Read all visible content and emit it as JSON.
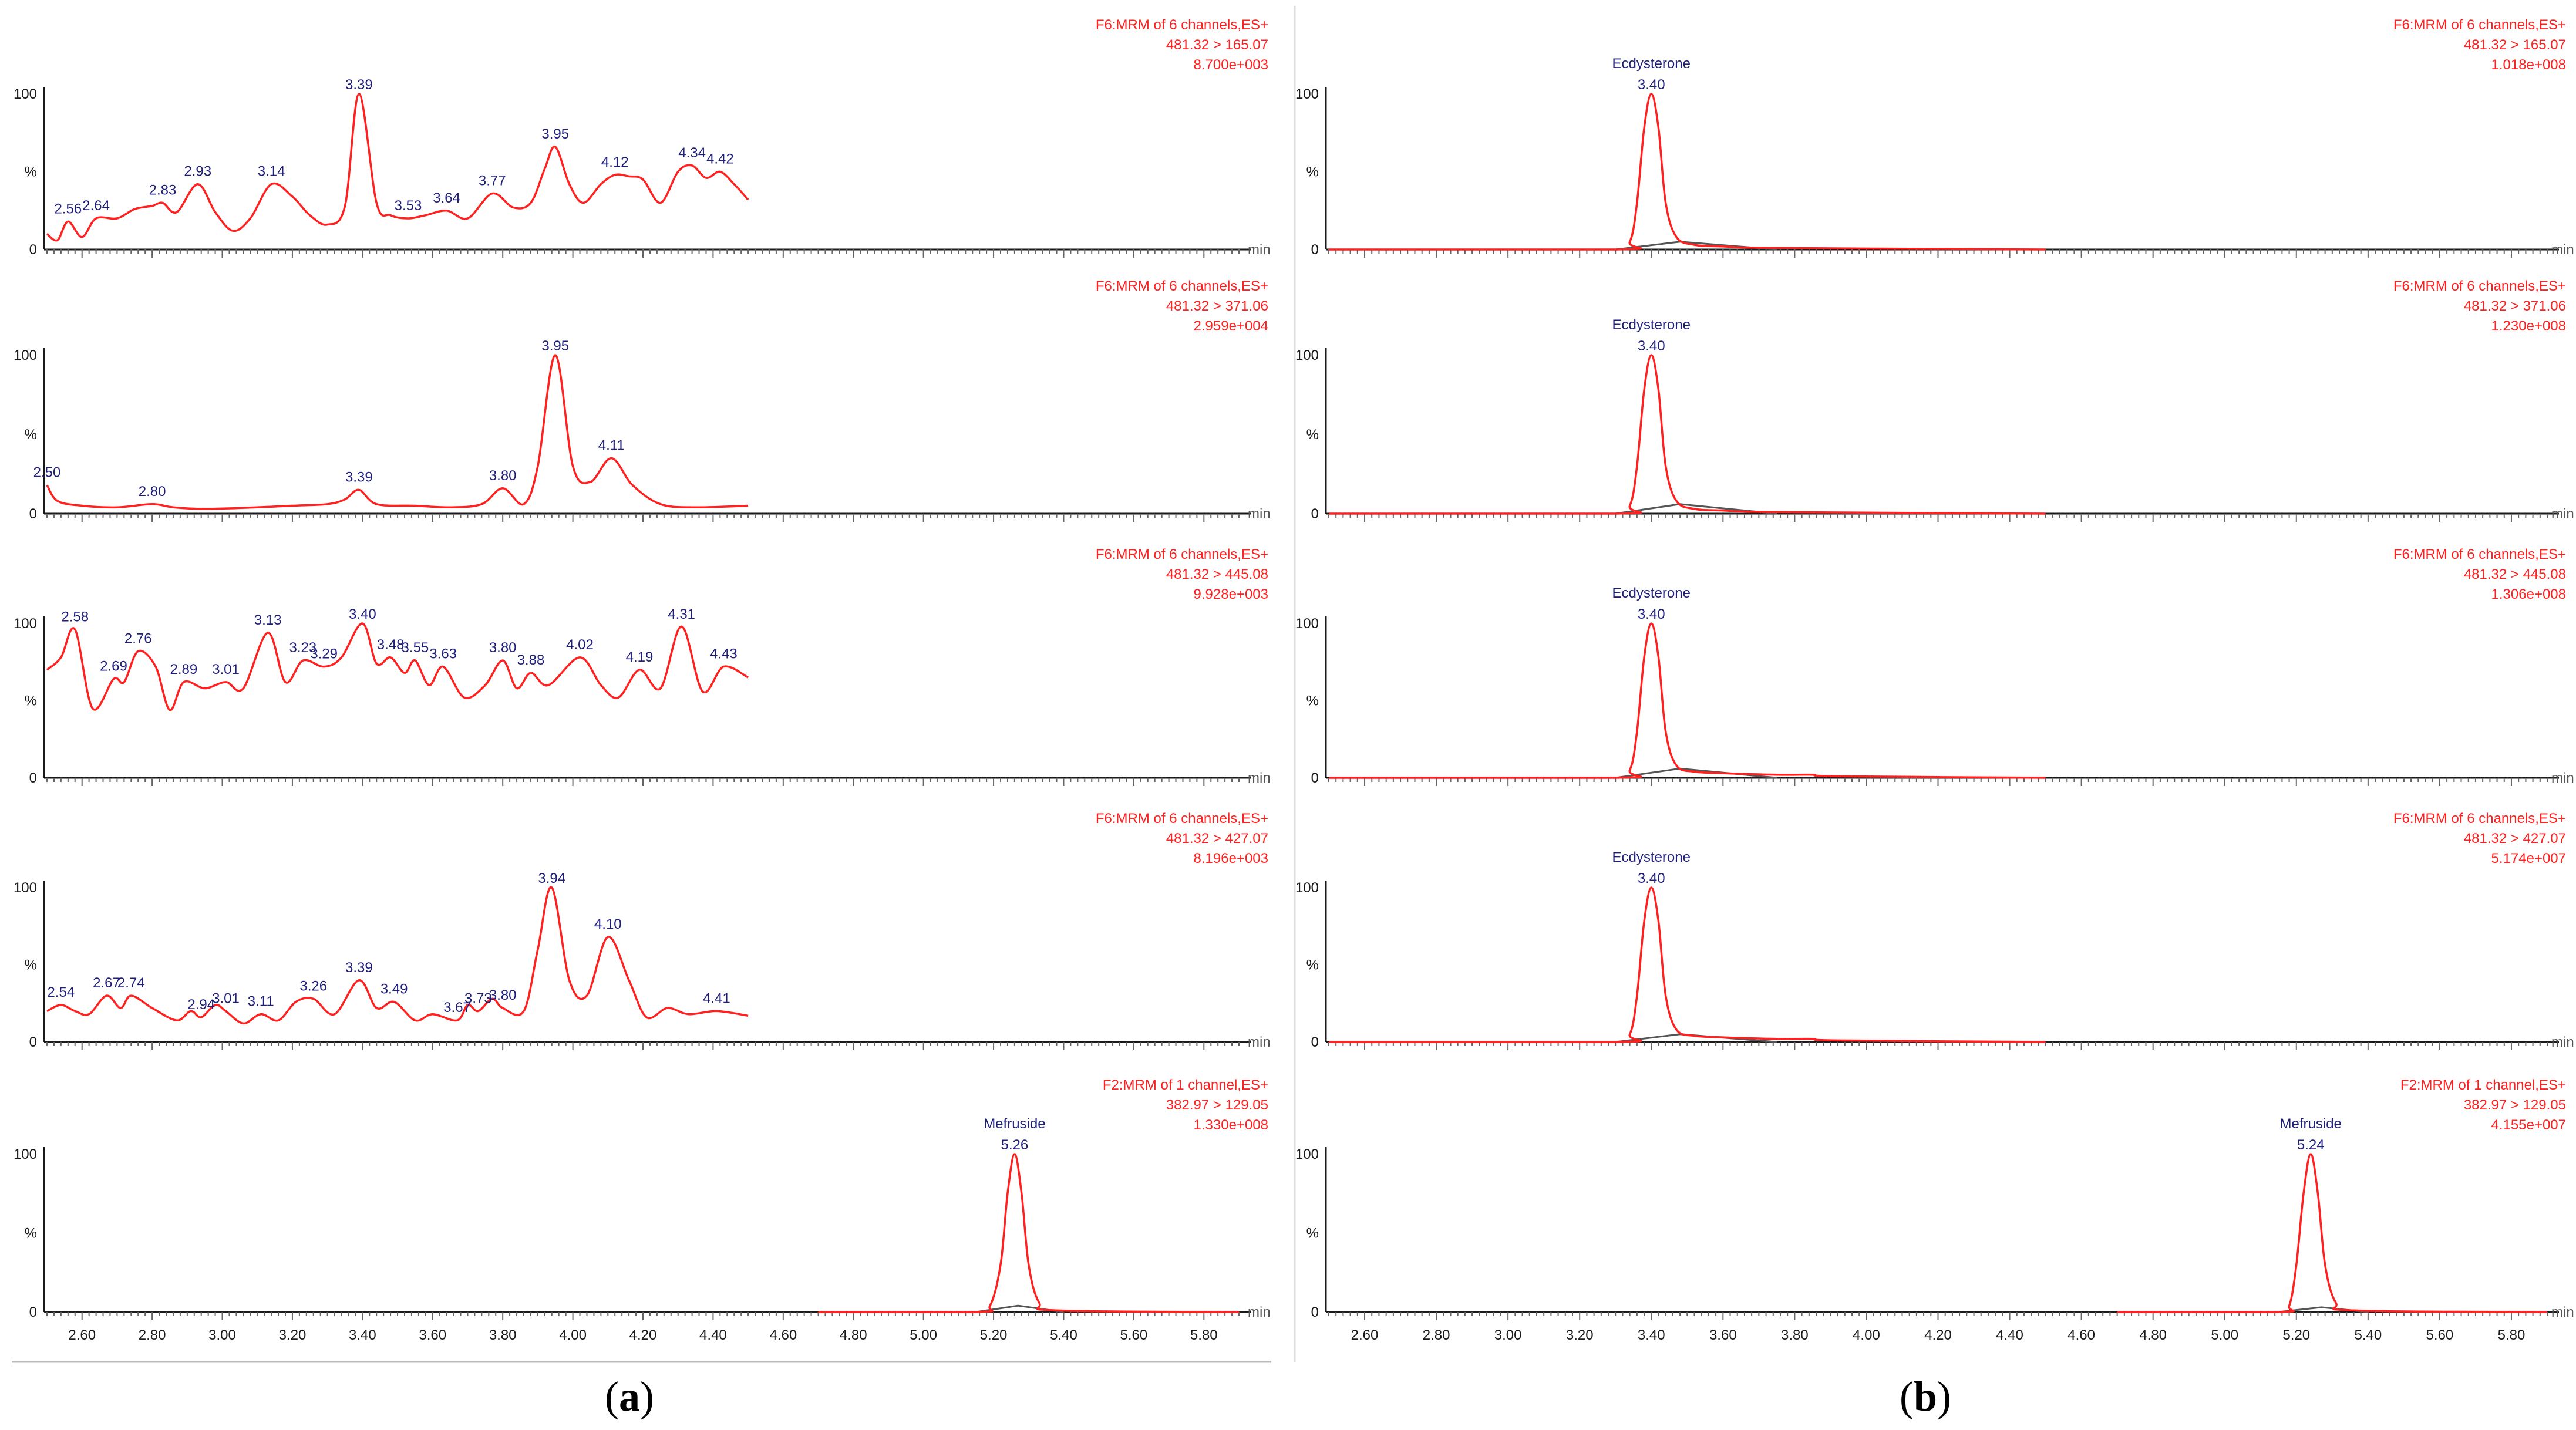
{
  "colors": {
    "trace": "#ff2020",
    "peak_label": "#1f1f7a",
    "axis": "#1a1a1a",
    "header": "#ff2020",
    "secondary": "#555555"
  },
  "panel_labels": [
    {
      "open": "(",
      "letter": "a",
      "close": ")"
    },
    {
      "open": "(",
      "letter": "b",
      "close": ")"
    }
  ],
  "chart_data": [
    {
      "type": "line",
      "panel": "a",
      "row": 1,
      "header": [
        "F6:MRM of 6 channels,ES+",
        "481.32 > 165.07",
        "8.700e+003"
      ],
      "ylabels": [
        "100",
        "%",
        "0"
      ],
      "xunit": "min",
      "xlim": [
        2.5,
        5.9
      ],
      "ylim": [
        0,
        100
      ],
      "show_xticks": false,
      "x": [
        2.5,
        2.53,
        2.56,
        2.6,
        2.64,
        2.7,
        2.75,
        2.8,
        2.83,
        2.87,
        2.93,
        2.98,
        3.03,
        3.08,
        3.14,
        3.2,
        3.25,
        3.3,
        3.35,
        3.39,
        3.44,
        3.48,
        3.53,
        3.58,
        3.64,
        3.7,
        3.77,
        3.83,
        3.88,
        3.92,
        3.95,
        3.99,
        4.03,
        4.08,
        4.12,
        4.16,
        4.2,
        4.25,
        4.3,
        4.34,
        4.38,
        4.42,
        4.46,
        4.5
      ],
      "y": [
        10,
        6,
        18,
        8,
        20,
        20,
        26,
        28,
        30,
        24,
        42,
        24,
        12,
        20,
        42,
        34,
        22,
        16,
        28,
        100,
        30,
        22,
        20,
        22,
        25,
        20,
        36,
        27,
        30,
        52,
        66,
        42,
        30,
        42,
        48,
        47,
        45,
        30,
        50,
        54,
        46,
        50,
        42,
        32
      ],
      "peaks": [
        {
          "x": 2.56,
          "label": "2.56"
        },
        {
          "x": 2.64,
          "label": "2.64"
        },
        {
          "x": 2.83,
          "label": "2.83"
        },
        {
          "x": 2.93,
          "label": "2.93"
        },
        {
          "x": 3.14,
          "label": "3.14"
        },
        {
          "x": 3.39,
          "label": "3.39"
        },
        {
          "x": 3.53,
          "label": "3.53"
        },
        {
          "x": 3.64,
          "label": "3.64"
        },
        {
          "x": 3.77,
          "label": "3.77"
        },
        {
          "x": 3.95,
          "label": "3.95"
        },
        {
          "x": 4.12,
          "label": "4.12"
        },
        {
          "x": 4.34,
          "label": "4.34"
        },
        {
          "x": 4.42,
          "label": "4.42"
        }
      ]
    },
    {
      "type": "line",
      "panel": "a",
      "row": 2,
      "header": [
        "F6:MRM of 6 channels,ES+",
        "481.32 > 371.06",
        "2.959e+004"
      ],
      "ylabels": [
        "100",
        "%",
        "0"
      ],
      "xunit": "min",
      "xlim": [
        2.5,
        5.9
      ],
      "ylim": [
        0,
        100
      ],
      "show_xticks": false,
      "x": [
        2.5,
        2.53,
        2.6,
        2.7,
        2.8,
        2.86,
        2.95,
        3.1,
        3.2,
        3.3,
        3.35,
        3.39,
        3.44,
        3.55,
        3.65,
        3.74,
        3.8,
        3.86,
        3.9,
        3.95,
        4.0,
        4.05,
        4.11,
        4.17,
        4.25,
        4.35,
        4.5
      ],
      "y": [
        18,
        8,
        5,
        4,
        6,
        4,
        3,
        4,
        5,
        6,
        9,
        15,
        6,
        5,
        4,
        6,
        16,
        6,
        30,
        100,
        30,
        20,
        35,
        18,
        6,
        4,
        5
      ],
      "peaks": [
        {
          "x": 2.5,
          "label": "2.50"
        },
        {
          "x": 2.8,
          "label": "2.80"
        },
        {
          "x": 3.39,
          "label": "3.39"
        },
        {
          "x": 3.8,
          "label": "3.80"
        },
        {
          "x": 3.95,
          "label": "3.95"
        },
        {
          "x": 4.11,
          "label": "4.11"
        }
      ]
    },
    {
      "type": "line",
      "panel": "a",
      "row": 3,
      "header": [
        "F6:MRM of 6 channels,ES+",
        "481.32 > 445.08",
        "9.928e+003"
      ],
      "ylabels": [
        "100",
        "%",
        "0"
      ],
      "xunit": "min",
      "xlim": [
        2.5,
        5.9
      ],
      "ylim": [
        0,
        100
      ],
      "show_xticks": false,
      "x": [
        2.5,
        2.54,
        2.58,
        2.63,
        2.69,
        2.72,
        2.76,
        2.81,
        2.85,
        2.89,
        2.95,
        3.01,
        3.06,
        3.13,
        3.18,
        3.23,
        3.29,
        3.34,
        3.4,
        3.44,
        3.48,
        3.52,
        3.55,
        3.59,
        3.63,
        3.69,
        3.75,
        3.8,
        3.84,
        3.88,
        3.93,
        4.02,
        4.08,
        4.13,
        4.19,
        4.25,
        4.31,
        4.37,
        4.43,
        4.5
      ],
      "y": [
        70,
        78,
        96,
        45,
        64,
        62,
        82,
        72,
        44,
        62,
        58,
        62,
        58,
        94,
        62,
        76,
        72,
        78,
        100,
        74,
        78,
        68,
        76,
        60,
        72,
        52,
        60,
        76,
        58,
        68,
        60,
        78,
        60,
        52,
        70,
        58,
        98,
        56,
        72,
        65
      ],
      "peaks": [
        {
          "x": 2.58,
          "label": "2.58"
        },
        {
          "x": 2.69,
          "label": "2.69"
        },
        {
          "x": 2.76,
          "label": "2.76"
        },
        {
          "x": 2.89,
          "label": "2.89"
        },
        {
          "x": 3.01,
          "label": "3.01"
        },
        {
          "x": 3.13,
          "label": "3.13"
        },
        {
          "x": 3.23,
          "label": "3.23"
        },
        {
          "x": 3.29,
          "label": "3.29"
        },
        {
          "x": 3.4,
          "label": "3.40"
        },
        {
          "x": 3.48,
          "label": "3.48"
        },
        {
          "x": 3.55,
          "label": "3.55"
        },
        {
          "x": 3.63,
          "label": "3.63"
        },
        {
          "x": 3.8,
          "label": "3.80"
        },
        {
          "x": 3.88,
          "label": "3.88"
        },
        {
          "x": 4.02,
          "label": "4.02"
        },
        {
          "x": 4.19,
          "label": "4.19"
        },
        {
          "x": 4.31,
          "label": "4.31"
        },
        {
          "x": 4.43,
          "label": "4.43"
        }
      ]
    },
    {
      "type": "line",
      "panel": "a",
      "row": 4,
      "header": [
        "F6:MRM of 6 channels,ES+",
        "481.32 > 427.07",
        "8.196e+003"
      ],
      "ylabels": [
        "100",
        "%",
        "0"
      ],
      "xunit": "min",
      "xlim": [
        2.5,
        5.9
      ],
      "ylim": [
        0,
        100
      ],
      "show_xticks": false,
      "x": [
        2.5,
        2.54,
        2.58,
        2.62,
        2.67,
        2.71,
        2.74,
        2.8,
        2.87,
        2.91,
        2.94,
        2.98,
        3.01,
        3.06,
        3.11,
        3.16,
        3.21,
        3.26,
        3.32,
        3.39,
        3.44,
        3.49,
        3.55,
        3.6,
        3.67,
        3.7,
        3.73,
        3.77,
        3.8,
        3.86,
        3.9,
        3.94,
        3.99,
        4.04,
        4.1,
        4.16,
        4.21,
        4.27,
        4.33,
        4.41,
        4.5
      ],
      "y": [
        20,
        24,
        20,
        18,
        30,
        22,
        30,
        22,
        14,
        20,
        16,
        24,
        20,
        12,
        18,
        14,
        26,
        28,
        18,
        40,
        22,
        26,
        14,
        18,
        14,
        24,
        20,
        28,
        22,
        20,
        60,
        100,
        40,
        30,
        68,
        40,
        16,
        22,
        18,
        20,
        17
      ],
      "peaks": [
        {
          "x": 2.54,
          "label": "2.54"
        },
        {
          "x": 2.67,
          "label": "2.67"
        },
        {
          "x": 2.74,
          "label": "2.74"
        },
        {
          "x": 2.94,
          "label": "2.94"
        },
        {
          "x": 3.01,
          "label": "3.01"
        },
        {
          "x": 3.11,
          "label": "3.11"
        },
        {
          "x": 3.26,
          "label": "3.26"
        },
        {
          "x": 3.39,
          "label": "3.39"
        },
        {
          "x": 3.49,
          "label": "3.49"
        },
        {
          "x": 3.67,
          "label": "3.67"
        },
        {
          "x": 3.73,
          "label": "3.73"
        },
        {
          "x": 3.8,
          "label": "3.80"
        },
        {
          "x": 3.94,
          "label": "3.94"
        },
        {
          "x": 4.1,
          "label": "4.10"
        },
        {
          "x": 4.41,
          "label": "4.41"
        }
      ]
    },
    {
      "type": "line",
      "panel": "a",
      "row": 5,
      "header": [
        "F2:MRM of 1 channel,ES+",
        "382.97 > 129.05",
        "1.330e+008"
      ],
      "ylabels": [
        "100",
        "%",
        "0"
      ],
      "xunit": "min",
      "xlim": [
        2.5,
        5.9
      ],
      "ylim": [
        0,
        100
      ],
      "show_xticks": true,
      "xticks": [
        "2.60",
        "2.80",
        "3.00",
        "3.20",
        "3.40",
        "3.60",
        "3.80",
        "4.00",
        "4.20",
        "4.40",
        "4.60",
        "4.80",
        "5.00",
        "5.20",
        "5.40",
        "5.60",
        "5.80"
      ],
      "x": [
        4.7,
        5.15,
        5.19,
        5.22,
        5.24,
        5.26,
        5.28,
        5.3,
        5.33,
        5.38,
        5.9
      ],
      "y": [
        0,
        0,
        4,
        30,
        75,
        100,
        75,
        30,
        6,
        1,
        0
      ],
      "baseline": {
        "x": [
          5.15,
          5.27,
          5.4
        ],
        "y": [
          0,
          4,
          0
        ]
      },
      "peaks": [
        {
          "x": 5.26,
          "label": "5.26",
          "name": "Mefruside"
        }
      ]
    },
    {
      "type": "line",
      "panel": "b",
      "row": 1,
      "header": [
        "F6:MRM of 6 channels,ES+",
        "481.32 > 165.07",
        "1.018e+008"
      ],
      "ylabels": [
        "100",
        "%",
        "0"
      ],
      "xunit": "min",
      "xlim": [
        2.5,
        5.9
      ],
      "ylim": [
        0,
        100
      ],
      "show_xticks": false,
      "x": [
        2.5,
        3.3,
        3.34,
        3.36,
        3.38,
        3.4,
        3.42,
        3.44,
        3.47,
        3.52,
        3.6,
        3.75,
        4.5
      ],
      "y": [
        0,
        0,
        5,
        30,
        78,
        100,
        78,
        30,
        8,
        3,
        2,
        1,
        0
      ],
      "baseline": {
        "x": [
          3.3,
          3.48,
          3.75
        ],
        "y": [
          0,
          5,
          0
        ]
      },
      "peaks": [
        {
          "x": 3.4,
          "label": "3.40",
          "name": "Ecdysterone"
        }
      ]
    },
    {
      "type": "line",
      "panel": "b",
      "row": 2,
      "header": [
        "F6:MRM of 6 channels,ES+",
        "481.32 > 371.06",
        "1.230e+008"
      ],
      "ylabels": [
        "100",
        "%",
        "0"
      ],
      "xunit": "min",
      "xlim": [
        2.5,
        5.9
      ],
      "ylim": [
        0,
        100
      ],
      "show_xticks": false,
      "x": [
        2.5,
        3.3,
        3.34,
        3.36,
        3.38,
        3.4,
        3.42,
        3.44,
        3.47,
        3.52,
        3.6,
        3.75,
        4.5
      ],
      "y": [
        0,
        0,
        5,
        30,
        78,
        100,
        78,
        30,
        8,
        3,
        2,
        1,
        0
      ],
      "baseline": {
        "x": [
          3.3,
          3.48,
          3.75
        ],
        "y": [
          0,
          6,
          0
        ]
      },
      "peaks": [
        {
          "x": 3.4,
          "label": "3.40",
          "name": "Ecdysterone"
        }
      ]
    },
    {
      "type": "line",
      "panel": "b",
      "row": 3,
      "header": [
        "F6:MRM of 6 channels,ES+",
        "481.32 > 445.08",
        "1.306e+008"
      ],
      "ylabels": [
        "100",
        "%",
        "0"
      ],
      "xunit": "min",
      "xlim": [
        2.5,
        5.9
      ],
      "ylim": [
        0,
        100
      ],
      "show_xticks": false,
      "x": [
        2.5,
        3.3,
        3.34,
        3.36,
        3.38,
        3.4,
        3.42,
        3.44,
        3.47,
        3.52,
        3.6,
        3.75,
        3.85,
        3.92,
        4.5
      ],
      "y": [
        0,
        0,
        5,
        30,
        78,
        100,
        78,
        30,
        8,
        4,
        3,
        2,
        2,
        1,
        0
      ],
      "baseline": {
        "x": [
          3.3,
          3.48,
          3.75
        ],
        "y": [
          0,
          6,
          0
        ]
      },
      "peaks": [
        {
          "x": 3.4,
          "label": "3.40",
          "name": "Ecdysterone"
        }
      ]
    },
    {
      "type": "line",
      "panel": "b",
      "row": 4,
      "header": [
        "F6:MRM of 6 channels,ES+",
        "481.32 > 427.07",
        "5.174e+007"
      ],
      "ylabels": [
        "100",
        "%",
        "0"
      ],
      "xunit": "min",
      "xlim": [
        2.5,
        5.9
      ],
      "ylim": [
        0,
        100
      ],
      "show_xticks": false,
      "x": [
        2.5,
        3.3,
        3.34,
        3.36,
        3.38,
        3.4,
        3.42,
        3.44,
        3.47,
        3.52,
        3.6,
        3.75,
        3.85,
        3.92,
        4.5
      ],
      "y": [
        0,
        0,
        5,
        30,
        78,
        100,
        78,
        30,
        8,
        4,
        3,
        2,
        2,
        1,
        0
      ],
      "baseline": {
        "x": [
          3.3,
          3.48,
          3.75
        ],
        "y": [
          0,
          5,
          0
        ]
      },
      "peaks": [
        {
          "x": 3.4,
          "label": "3.40",
          "name": "Ecdysterone"
        }
      ]
    },
    {
      "type": "line",
      "panel": "b",
      "row": 5,
      "header": [
        "F2:MRM of 1 channel,ES+",
        "382.97 > 129.05",
        "4.155e+007"
      ],
      "ylabels": [
        "100",
        "%",
        "0"
      ],
      "xunit": "min",
      "xlim": [
        2.5,
        5.9
      ],
      "ylim": [
        0,
        100
      ],
      "show_xticks": true,
      "xticks": [
        "2.60",
        "2.80",
        "3.00",
        "3.20",
        "3.40",
        "3.60",
        "3.80",
        "4.00",
        "4.20",
        "4.40",
        "4.60",
        "4.80",
        "5.00",
        "5.20",
        "5.40",
        "5.60",
        "5.80"
      ],
      "x": [
        4.7,
        5.15,
        5.18,
        5.2,
        5.22,
        5.24,
        5.26,
        5.28,
        5.31,
        5.36,
        5.9
      ],
      "y": [
        0,
        0,
        4,
        30,
        75,
        100,
        75,
        30,
        6,
        1,
        0
      ],
      "baseline": {
        "x": [
          5.15,
          5.27,
          5.4
        ],
        "y": [
          0,
          3,
          0
        ]
      },
      "peaks": [
        {
          "x": 5.24,
          "label": "5.24",
          "name": "Mefruside"
        }
      ]
    }
  ]
}
